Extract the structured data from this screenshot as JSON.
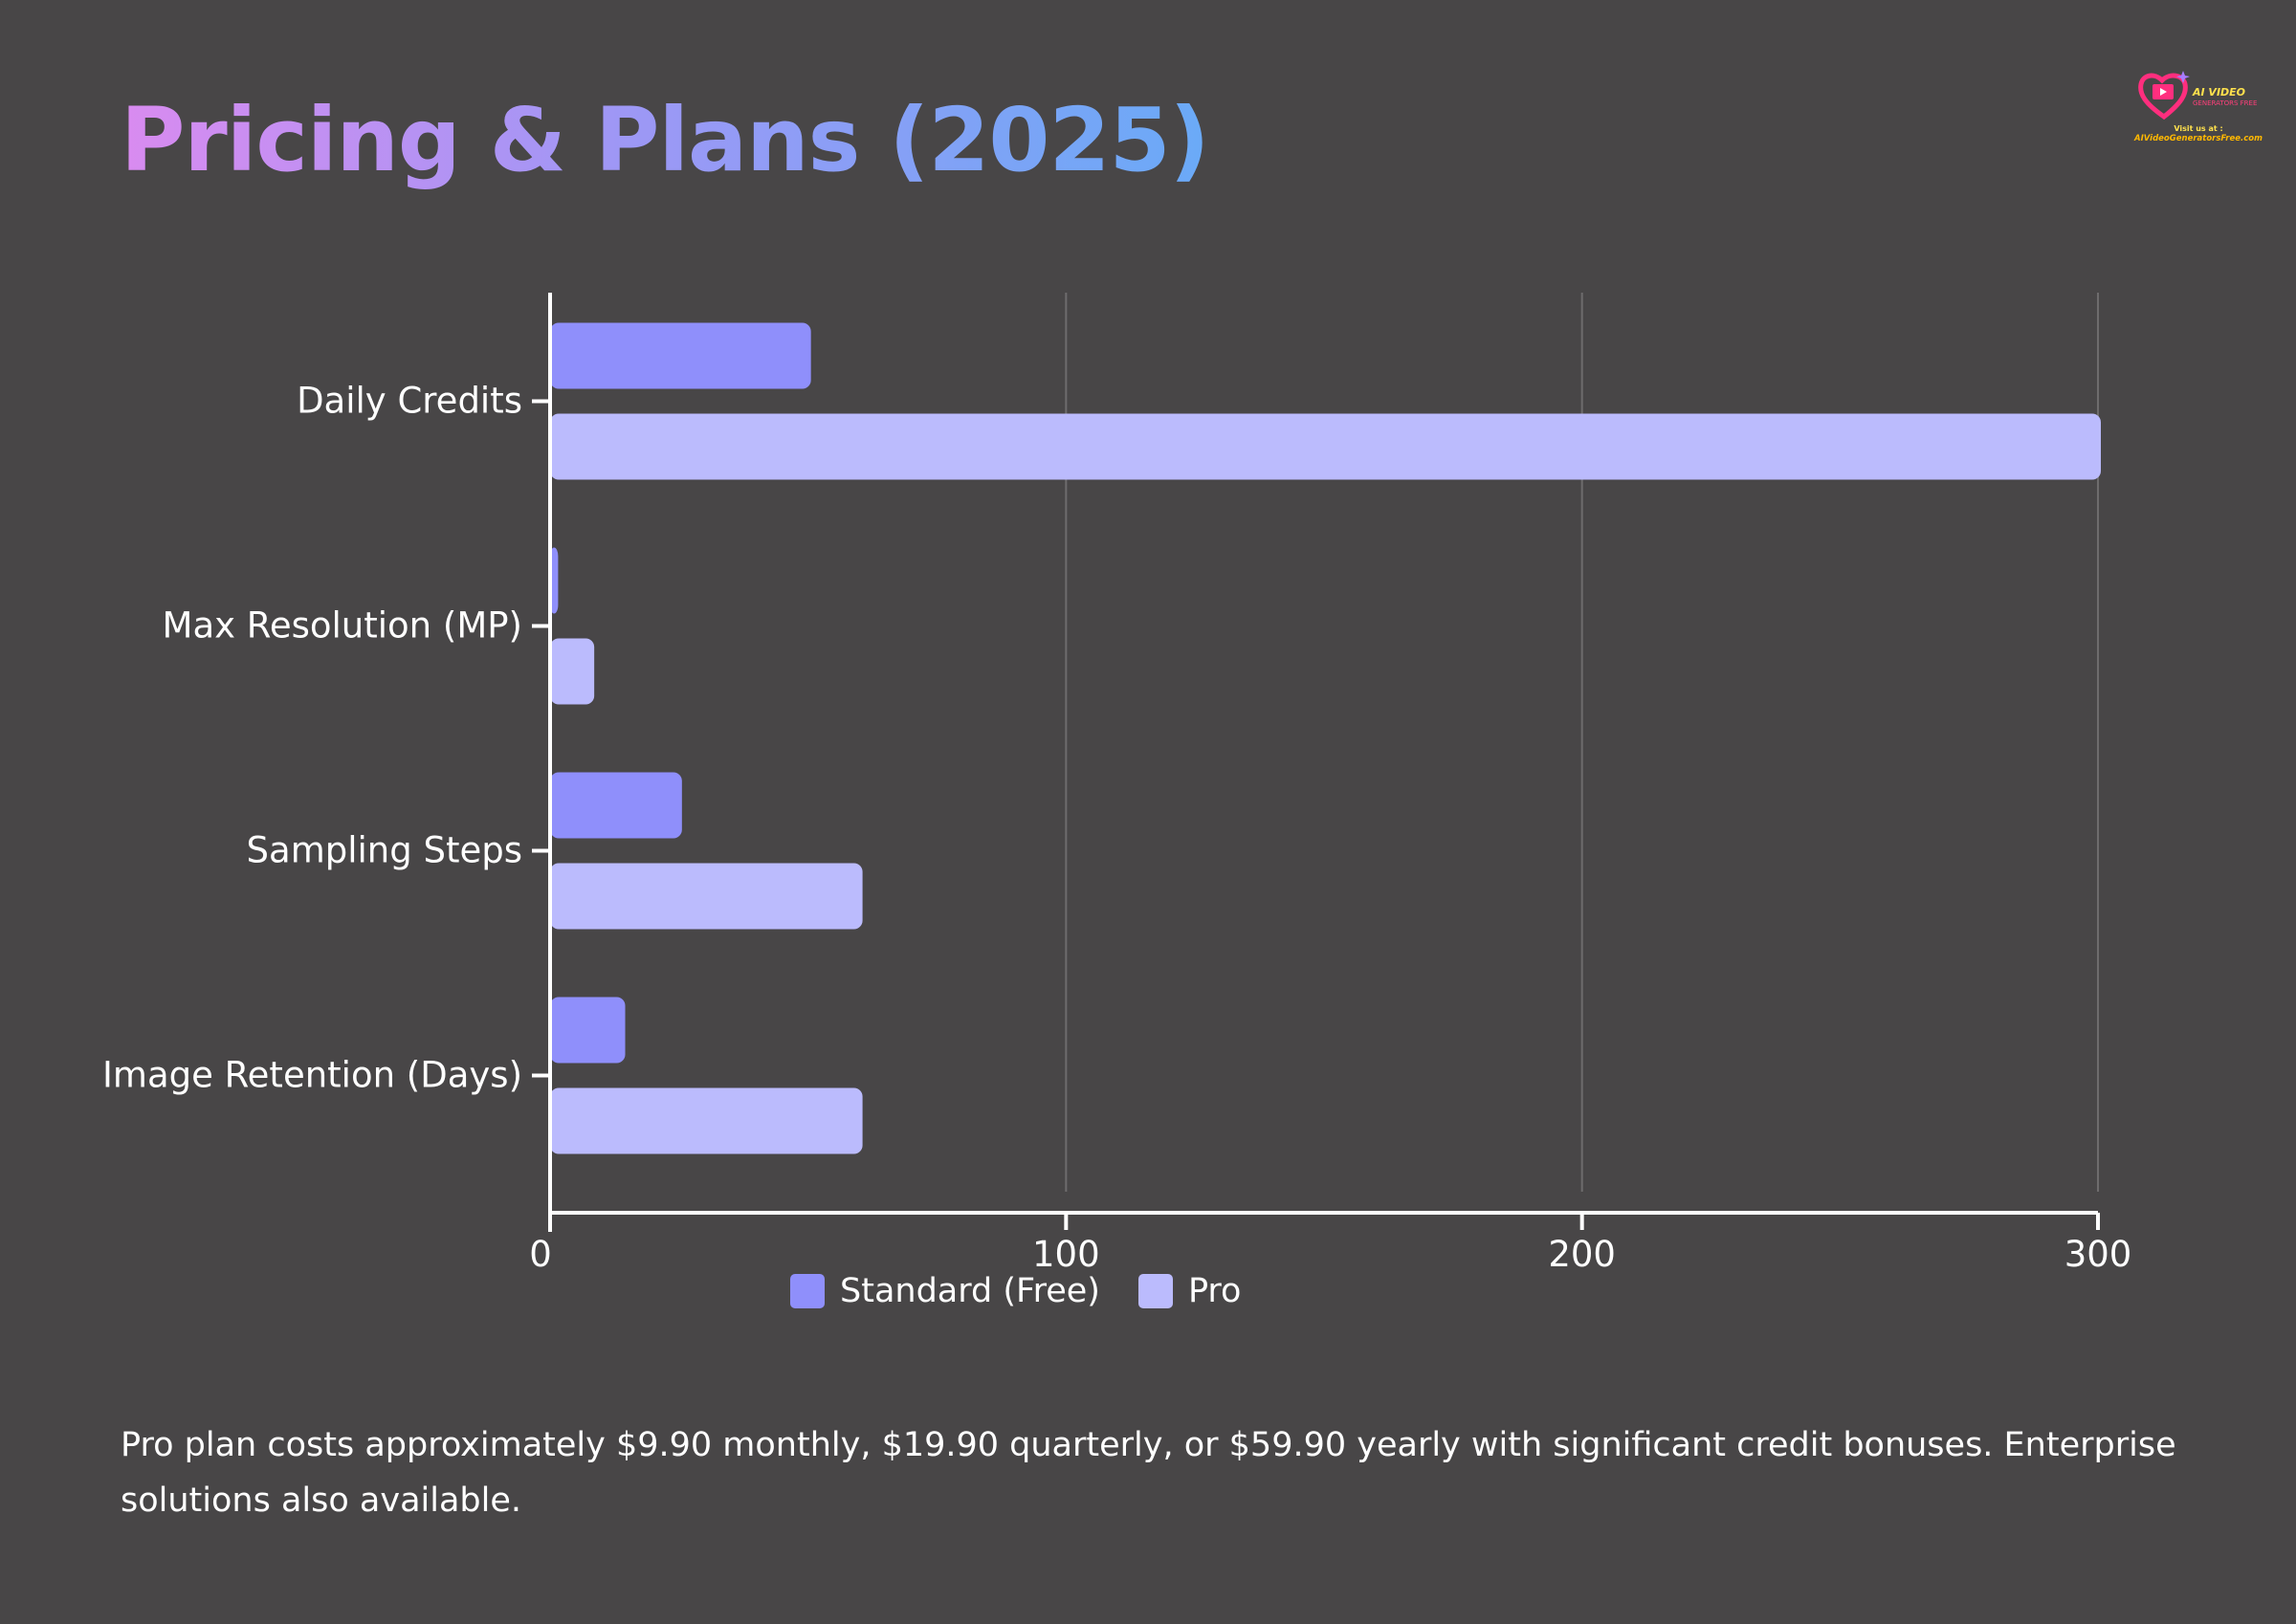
{
  "page": {
    "title": "Pricing & Plans (2025)",
    "footnote": "Pro plan costs approximately $9.90 monthly, $19.90 quarterly, or $59.90 yearly with significant credit bonuses. Enterprise solutions also available."
  },
  "logo": {
    "line1": "AI VIDEO",
    "line2": "GENERATORS FREE",
    "visit": "Visit us at :",
    "url": "AIVideoGeneratorsFree.com"
  },
  "colors": {
    "background": "#484647",
    "standard": "#8f8ffb",
    "pro": "#bbbbfd",
    "axis": "#ffffff",
    "grid": "#6e6c6d"
  },
  "chart_data": {
    "type": "bar",
    "orientation": "horizontal",
    "categories": [
      "Daily Credits",
      "Max Resolution (MP)",
      "Sampling Steps",
      "Image Retention (Days)"
    ],
    "series": [
      {
        "name": "Standard (Free)",
        "values": [
          50,
          1,
          25,
          14
        ]
      },
      {
        "name": "Pro",
        "values": [
          300,
          8,
          60,
          60
        ]
      }
    ],
    "xlim": [
      0,
      300
    ],
    "xticks": [
      "0",
      "100",
      "200",
      "300"
    ],
    "xtick_values": [
      0,
      100,
      200,
      300
    ],
    "grid": true,
    "legend_position": "bottom"
  }
}
